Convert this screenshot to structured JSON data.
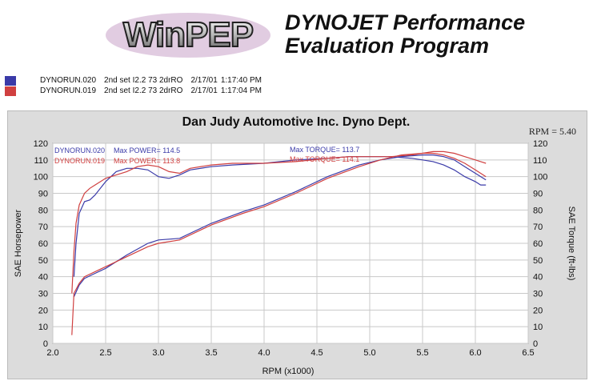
{
  "header": {
    "logo_text": "WinPEP",
    "title_line1": "DYNOJET Performance",
    "title_line2": "Evaluation Program"
  },
  "runs": [
    {
      "file": "DYNORUN.020",
      "desc": "2nd set I2.2 73 2drRO",
      "date": "2/17/01",
      "time": "1:17:40 PM",
      "color": "#3a3aa8"
    },
    {
      "file": "DYNORUN.019",
      "desc": "2nd set I2.2 73 2drRO",
      "date": "2/17/01",
      "time": "1:17:04 PM",
      "color": "#d04040"
    }
  ],
  "chart_data": {
    "type": "line",
    "title": "Dan Judy Automotive Inc. Dyno Dept.",
    "rpm_readout": "RPM = 5.40",
    "xlabel": "RPM (x1000)",
    "ylabel_left": "SAE Horsepower",
    "ylabel_right": "SAE Torque (ft-lbs)",
    "xlim": [
      2.0,
      6.5
    ],
    "ylim": [
      0,
      120
    ],
    "x_ticks": [
      "2.0",
      "2.5",
      "3.0",
      "3.5",
      "4.0",
      "4.5",
      "5.0",
      "5.5",
      "6.0",
      "6.5"
    ],
    "y_ticks": [
      "0",
      "10",
      "20",
      "30",
      "40",
      "50",
      "60",
      "70",
      "80",
      "90",
      "100",
      "110",
      "120"
    ],
    "grid": true,
    "annotations": {
      "run020_label": "DYNORUN.020",
      "run020_power": "Max POWER= 114.5",
      "run020_torque": "Max TORQUE= 113.7",
      "run019_label": "DYNORUN.019",
      "run019_power": "Max POWER= 113.8",
      "run019_torque": "Max TORQUE= 114.1"
    },
    "series": [
      {
        "name": "DYNORUN.020",
        "kind": "torque",
        "color": "#3a3aa8",
        "x": [
          2.2,
          2.22,
          2.25,
          2.3,
          2.35,
          2.4,
          2.5,
          2.6,
          2.7,
          2.8,
          2.9,
          3.0,
          3.1,
          3.2,
          3.3,
          3.5,
          3.7,
          4.0,
          4.3,
          4.6,
          4.8,
          5.0,
          5.2,
          5.4,
          5.5,
          5.6,
          5.7,
          5.8,
          5.9,
          6.0,
          6.05,
          6.1
        ],
        "y": [
          40,
          60,
          78,
          85,
          86,
          89,
          97,
          103,
          105,
          105,
          104,
          100,
          99,
          101,
          104,
          106,
          107,
          108,
          110,
          111,
          112,
          112,
          112,
          111,
          110,
          109,
          107,
          104,
          100,
          97,
          95,
          95
        ]
      },
      {
        "name": "DYNORUN.019",
        "kind": "torque",
        "color": "#d04040",
        "x": [
          2.18,
          2.2,
          2.22,
          2.25,
          2.3,
          2.35,
          2.4,
          2.5,
          2.6,
          2.7,
          2.8,
          2.9,
          3.0,
          3.1,
          3.2,
          3.3,
          3.5,
          3.7,
          4.0,
          4.3,
          4.6,
          4.8,
          5.0,
          5.2,
          5.4,
          5.5,
          5.6,
          5.7,
          5.8,
          5.9,
          6.0,
          6.05,
          6.1
        ],
        "y": [
          30,
          55,
          72,
          83,
          90,
          93,
          95,
          99,
          101,
          103,
          106,
          107,
          106,
          103,
          102,
          105,
          107,
          108,
          108,
          109,
          111,
          112,
          112,
          112,
          113,
          114,
          115,
          115,
          114,
          112,
          110,
          109,
          108
        ]
      },
      {
        "name": "DYNORUN.020",
        "kind": "power",
        "color": "#3a3aa8",
        "x": [
          2.2,
          2.25,
          2.3,
          2.4,
          2.5,
          2.7,
          2.9,
          3.0,
          3.2,
          3.5,
          3.8,
          4.0,
          4.3,
          4.6,
          4.9,
          5.1,
          5.3,
          5.5,
          5.6,
          5.7,
          5.8,
          5.9,
          6.0,
          6.1
        ],
        "y": [
          28,
          35,
          39,
          42,
          45,
          53,
          60,
          62,
          63,
          72,
          79,
          83,
          91,
          100,
          107,
          110,
          112,
          113,
          113,
          112,
          110,
          106,
          102,
          98
        ]
      },
      {
        "name": "DYNORUN.019",
        "kind": "power",
        "color": "#d04040",
        "x": [
          2.18,
          2.2,
          2.25,
          2.3,
          2.4,
          2.5,
          2.7,
          2.9,
          3.0,
          3.2,
          3.5,
          3.8,
          4.0,
          4.3,
          4.6,
          4.9,
          5.1,
          5.3,
          5.5,
          5.6,
          5.7,
          5.8,
          5.9,
          6.0,
          6.1
        ],
        "y": [
          5,
          30,
          36,
          40,
          43,
          46,
          52,
          58,
          60,
          62,
          71,
          78,
          82,
          90,
          99,
          106,
          110,
          113,
          114,
          114,
          113,
          111,
          108,
          104,
          100
        ]
      }
    ]
  }
}
